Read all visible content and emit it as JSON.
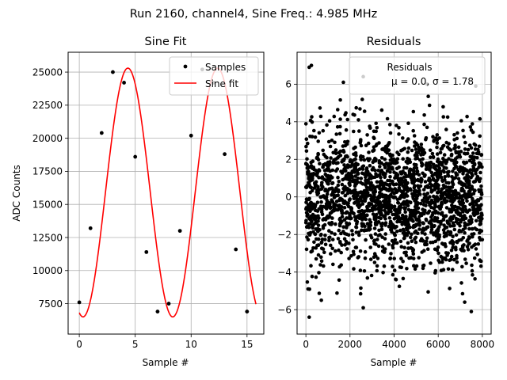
{
  "suptitle": "Run 2160, channel4, Sine Freq.: 4.985 MHz",
  "chart_data": [
    {
      "type": "line",
      "title": "Sine Fit",
      "xlabel": "Sample #",
      "ylabel": "ADC Counts",
      "xlim": [
        -1,
        16.5
      ],
      "ylim": [
        5200,
        26500
      ],
      "xticks": [
        0,
        5,
        10,
        15
      ],
      "yticks": [
        7500,
        10000,
        12500,
        15000,
        17500,
        20000,
        22500,
        25000
      ],
      "xtick_labels": [
        "0",
        "5",
        "10",
        "15"
      ],
      "ytick_labels": [
        "7500",
        "10000",
        "12500",
        "15000",
        "17500",
        "20000",
        "22500",
        "25000"
      ],
      "grid": true,
      "legend": {
        "position": "top-right",
        "entries": [
          "Samples",
          "Sine fit"
        ]
      },
      "series": [
        {
          "name": "Samples",
          "kind": "scatter",
          "color": "#000000",
          "x": [
            0,
            1,
            2,
            3,
            4,
            5,
            6,
            7,
            8,
            9,
            10,
            11,
            12,
            13,
            14,
            15
          ],
          "y": [
            7600,
            13200,
            20400,
            25000,
            24200,
            18600,
            11400,
            6900,
            7500,
            13000,
            20200,
            25200,
            24200,
            18800,
            11600,
            6900
          ]
        },
        {
          "name": "Sine fit",
          "kind": "line",
          "color": "#ff0000",
          "fit": {
            "offset": 15900,
            "amplitude": 9400,
            "cycles_per_sample": 0.1246,
            "phase": -1.83,
            "x_range": [
              0,
              15.8
            ]
          }
        }
      ]
    },
    {
      "type": "scatter",
      "title": "Residuals",
      "xlabel": "Sample #",
      "ylabel": "",
      "xlim": [
        -400,
        8400
      ],
      "ylim": [
        -7.3,
        7.7
      ],
      "xticks": [
        0,
        2000,
        4000,
        6000,
        8000
      ],
      "yticks": [
        -6,
        -4,
        -2,
        0,
        2,
        4,
        6
      ],
      "xtick_labels": [
        "0",
        "2000",
        "4000",
        "6000",
        "8000"
      ],
      "ytick_labels": [
        "−6",
        "−4",
        "−2",
        "0",
        "2",
        "4",
        "6"
      ],
      "grid": true,
      "legend": {
        "position": "top-right",
        "entries": [
          "Residuals",
          "μ = 0.0, σ = 1.78"
        ]
      },
      "series": [
        {
          "name": "Residuals",
          "color": "#000000",
          "n_points": 8000,
          "x_range": [
            0,
            8000
          ],
          "mean": 0.0,
          "std": 1.78,
          "outliers": [
            [
              150,
              -6.4
            ],
            [
              150,
              6.9
            ],
            [
              250,
              7.0
            ],
            [
              2600,
              -5.9
            ],
            [
              2600,
              6.4
            ],
            [
              700,
              -5.5
            ],
            [
              7500,
              -6.1
            ],
            [
              100,
              -4.9
            ],
            [
              7700,
              5.9
            ],
            [
              1700,
              6.1
            ],
            [
              5500,
              6.0
            ],
            [
              7200,
              -5.6
            ]
          ]
        }
      ]
    }
  ]
}
